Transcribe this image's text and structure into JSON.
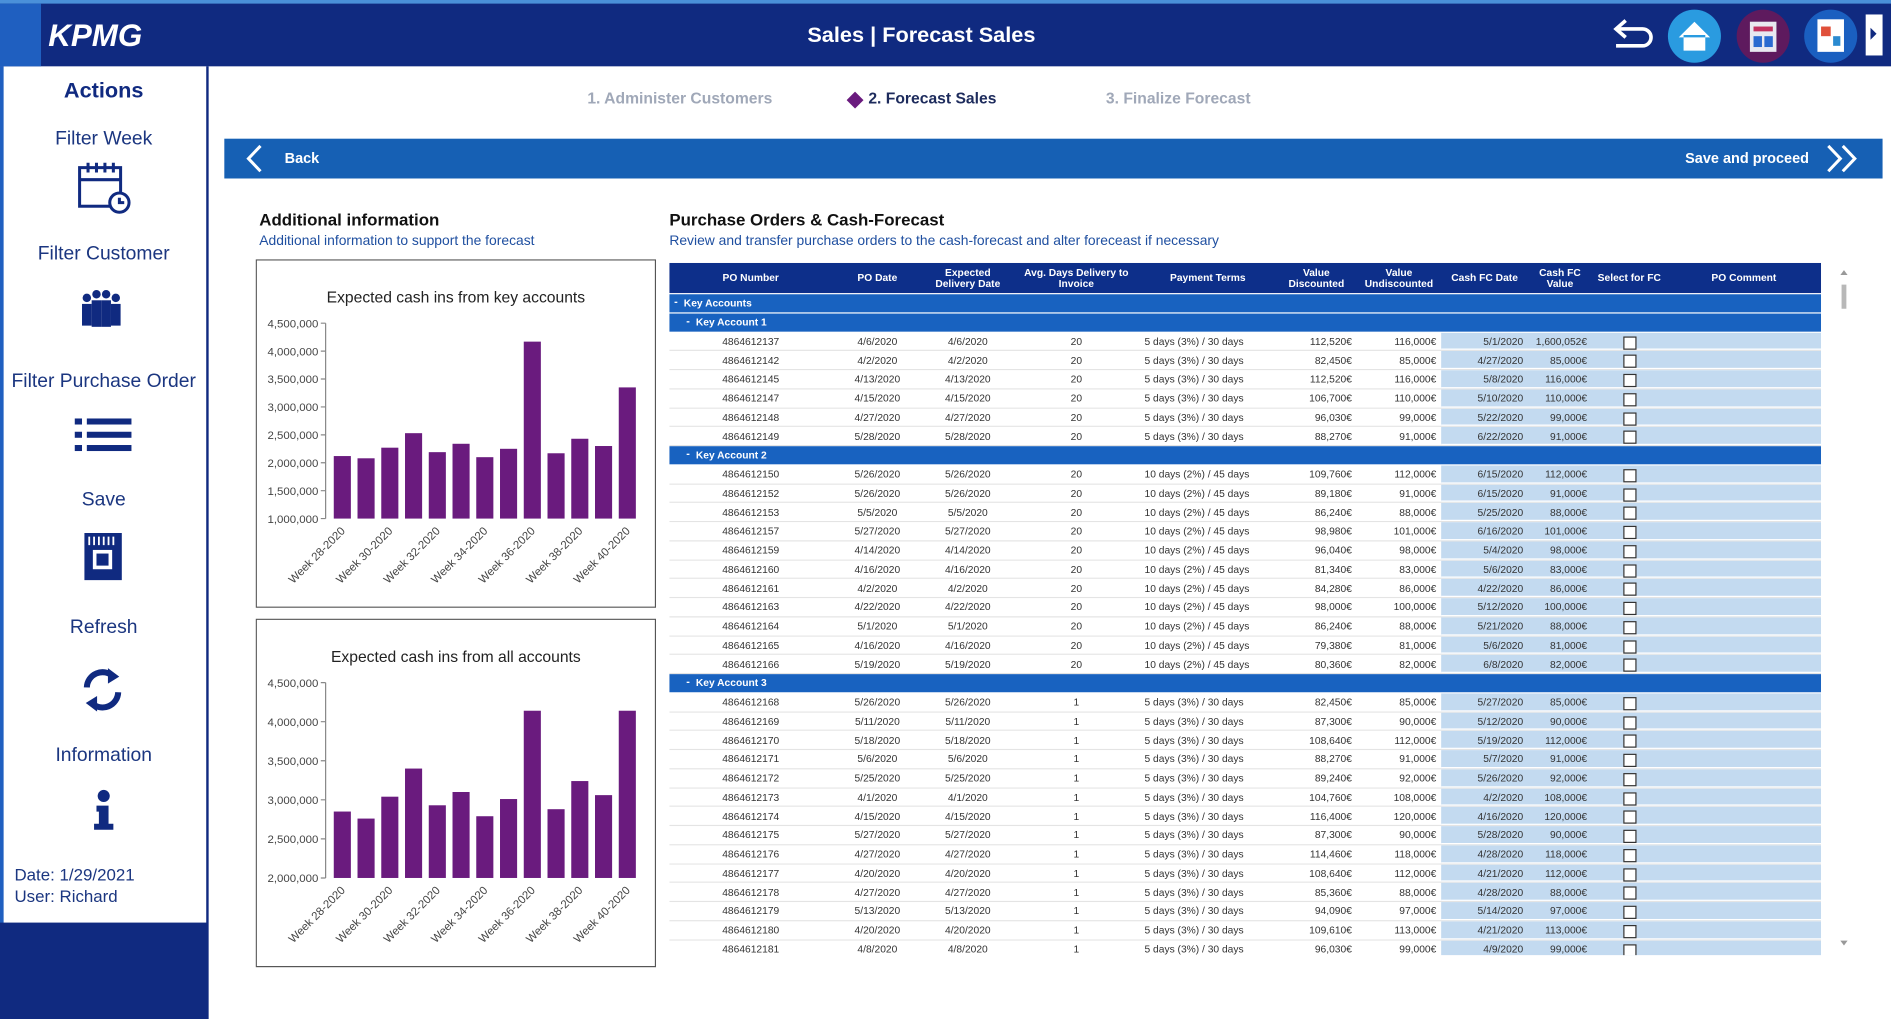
{
  "header": {
    "logo": "KPMG",
    "title": "Sales | Forecast Sales"
  },
  "sidebar": {
    "heading": "Actions",
    "actions": [
      "Filter Week",
      "Filter Customer",
      "Filter Purchase Order",
      "Save",
      "Refresh",
      "Information"
    ],
    "date": "Date: 1/29/2021",
    "user": "User: Richard"
  },
  "steps": [
    "1. Administer Customers",
    "2. Forecast Sales",
    "3. Finalize Forecast"
  ],
  "toolbar": {
    "back": "Back",
    "proceed": "Save and proceed"
  },
  "info": {
    "title": "Additional information",
    "subtitle": "Additional information to support the forecast"
  },
  "chart_data": [
    {
      "type": "bar",
      "title": "Expected cash ins from key accounts",
      "color": "#6a1b7e",
      "categories": [
        "Week 28-2020",
        null,
        "Week 30-2020",
        null,
        "Week 32-2020",
        null,
        "Week 34-2020",
        null,
        "Week 36-2020",
        null,
        "Week 38-2020",
        null,
        "Week 40-2020"
      ],
      "values": [
        2120000,
        2080000,
        2270000,
        2530000,
        2190000,
        2340000,
        2100000,
        2250000,
        4170000,
        2170000,
        2430000,
        2300000,
        3350000
      ],
      "ylim": [
        1000000,
        4500000
      ],
      "yticks": [
        {
          "value": 1000000,
          "label": "1,000,000"
        },
        {
          "value": 1500000,
          "label": "1,500,000"
        },
        {
          "value": 2000000,
          "label": "2,000,000"
        },
        {
          "value": 2500000,
          "label": "2,500,000"
        },
        {
          "value": 3000000,
          "label": "3,000,000"
        },
        {
          "value": 3500000,
          "label": "3,500,000"
        },
        {
          "value": 4000000,
          "label": "4,000,000"
        },
        {
          "value": 4500000,
          "label": "4,500,000"
        }
      ]
    },
    {
      "type": "bar",
      "title": "Expected cash ins from all accounts",
      "color": "#6a1b7e",
      "categories": [
        "Week 28-2020",
        null,
        "Week 30-2020",
        null,
        "Week 32-2020",
        null,
        "Week 34-2020",
        null,
        "Week 36-2020",
        null,
        "Week 38-2020",
        null,
        "Week 40-2020"
      ],
      "values": [
        2850000,
        2760000,
        3040000,
        3400000,
        2930000,
        3100000,
        2790000,
        3010000,
        4140000,
        2880000,
        3240000,
        3060000,
        4140000
      ],
      "ylim": [
        2000000,
        4500000
      ],
      "yticks": [
        {
          "value": 2000000,
          "label": "2,000,000"
        },
        {
          "value": 2500000,
          "label": "2,500,000"
        },
        {
          "value": 3000000,
          "label": "3,000,000"
        },
        {
          "value": 3500000,
          "label": "3,500,000"
        },
        {
          "value": 4000000,
          "label": "4,000,000"
        },
        {
          "value": 4500000,
          "label": "4,500,000"
        }
      ]
    }
  ],
  "table": {
    "title": "Purchase Orders & Cash-Forecast",
    "subtitle": "Review and transfer purchase orders to the cash-forecast and alter foreceast if necessary",
    "columns": [
      "PO Number",
      "PO Date",
      "Expected Delivery Date",
      "Avg. Days Delivery to Invoice",
      "Payment Terms",
      "Value Discounted",
      "Value Undiscounted",
      "Cash FC Date",
      "Cash FC Value",
      "Select for FC",
      "PO Comment"
    ],
    "root": "Key Accounts",
    "groups": [
      {
        "name": "Key Account 1",
        "rows": [
          [
            "4864612137",
            "4/6/2020",
            "4/6/2020",
            "20",
            "5 days (3%) / 30 days",
            "112,520€",
            "116,000€",
            "5/1/2020",
            "1,600,052€"
          ],
          [
            "4864612142",
            "4/2/2020",
            "4/2/2020",
            "20",
            "5 days (3%) / 30 days",
            "82,450€",
            "85,000€",
            "4/27/2020",
            "85,000€"
          ],
          [
            "4864612145",
            "4/13/2020",
            "4/13/2020",
            "20",
            "5 days (3%) / 30 days",
            "112,520€",
            "116,000€",
            "5/8/2020",
            "116,000€"
          ],
          [
            "4864612147",
            "4/15/2020",
            "4/15/2020",
            "20",
            "5 days (3%) / 30 days",
            "106,700€",
            "110,000€",
            "5/10/2020",
            "110,000€"
          ],
          [
            "4864612148",
            "4/27/2020",
            "4/27/2020",
            "20",
            "5 days (3%) / 30 days",
            "96,030€",
            "99,000€",
            "5/22/2020",
            "99,000€"
          ],
          [
            "4864612149",
            "5/28/2020",
            "5/28/2020",
            "20",
            "5 days (3%) / 30 days",
            "88,270€",
            "91,000€",
            "6/22/2020",
            "91,000€"
          ]
        ]
      },
      {
        "name": "Key Account 2",
        "rows": [
          [
            "4864612150",
            "5/26/2020",
            "5/26/2020",
            "20",
            "10 days (2%) / 45 days",
            "109,760€",
            "112,000€",
            "6/15/2020",
            "112,000€"
          ],
          [
            "4864612152",
            "5/26/2020",
            "5/26/2020",
            "20",
            "10 days (2%) / 45 days",
            "89,180€",
            "91,000€",
            "6/15/2020",
            "91,000€"
          ],
          [
            "4864612153",
            "5/5/2020",
            "5/5/2020",
            "20",
            "10 days (2%) / 45 days",
            "86,240€",
            "88,000€",
            "5/25/2020",
            "88,000€"
          ],
          [
            "4864612157",
            "5/27/2020",
            "5/27/2020",
            "20",
            "10 days (2%) / 45 days",
            "98,980€",
            "101,000€",
            "6/16/2020",
            "101,000€"
          ],
          [
            "4864612159",
            "4/14/2020",
            "4/14/2020",
            "20",
            "10 days (2%) / 45 days",
            "96,040€",
            "98,000€",
            "5/4/2020",
            "98,000€"
          ],
          [
            "4864612160",
            "4/16/2020",
            "4/16/2020",
            "20",
            "10 days (2%) / 45 days",
            "81,340€",
            "83,000€",
            "5/6/2020",
            "83,000€"
          ],
          [
            "4864612161",
            "4/2/2020",
            "4/2/2020",
            "20",
            "10 days (2%) / 45 days",
            "84,280€",
            "86,000€",
            "4/22/2020",
            "86,000€"
          ],
          [
            "4864612163",
            "4/22/2020",
            "4/22/2020",
            "20",
            "10 days (2%) / 45 days",
            "98,000€",
            "100,000€",
            "5/12/2020",
            "100,000€"
          ],
          [
            "4864612164",
            "5/1/2020",
            "5/1/2020",
            "20",
            "10 days (2%) / 45 days",
            "86,240€",
            "88,000€",
            "5/21/2020",
            "88,000€"
          ],
          [
            "4864612165",
            "4/16/2020",
            "4/16/2020",
            "20",
            "10 days (2%) / 45 days",
            "79,380€",
            "81,000€",
            "5/6/2020",
            "81,000€"
          ],
          [
            "4864612166",
            "5/19/2020",
            "5/19/2020",
            "20",
            "10 days (2%) / 45 days",
            "80,360€",
            "82,000€",
            "6/8/2020",
            "82,000€"
          ]
        ]
      },
      {
        "name": "Key Account 3",
        "rows": [
          [
            "4864612168",
            "5/26/2020",
            "5/26/2020",
            "1",
            "5 days (3%) / 30 days",
            "82,450€",
            "85,000€",
            "5/27/2020",
            "85,000€"
          ],
          [
            "4864612169",
            "5/11/2020",
            "5/11/2020",
            "1",
            "5 days (3%) / 30 days",
            "87,300€",
            "90,000€",
            "5/12/2020",
            "90,000€"
          ],
          [
            "4864612170",
            "5/18/2020",
            "5/18/2020",
            "1",
            "5 days (3%) / 30 days",
            "108,640€",
            "112,000€",
            "5/19/2020",
            "112,000€"
          ],
          [
            "4864612171",
            "5/6/2020",
            "5/6/2020",
            "1",
            "5 days (3%) / 30 days",
            "88,270€",
            "91,000€",
            "5/7/2020",
            "91,000€"
          ],
          [
            "4864612172",
            "5/25/2020",
            "5/25/2020",
            "1",
            "5 days (3%) / 30 days",
            "89,240€",
            "92,000€",
            "5/26/2020",
            "92,000€"
          ],
          [
            "4864612173",
            "4/1/2020",
            "4/1/2020",
            "1",
            "5 days (3%) / 30 days",
            "104,760€",
            "108,000€",
            "4/2/2020",
            "108,000€"
          ],
          [
            "4864612174",
            "4/15/2020",
            "4/15/2020",
            "1",
            "5 days (3%) / 30 days",
            "116,400€",
            "120,000€",
            "4/16/2020",
            "120,000€"
          ],
          [
            "4864612175",
            "5/27/2020",
            "5/27/2020",
            "1",
            "5 days (3%) / 30 days",
            "87,300€",
            "90,000€",
            "5/28/2020",
            "90,000€"
          ],
          [
            "4864612176",
            "4/27/2020",
            "4/27/2020",
            "1",
            "5 days (3%) / 30 days",
            "114,460€",
            "118,000€",
            "4/28/2020",
            "118,000€"
          ],
          [
            "4864612177",
            "4/20/2020",
            "4/20/2020",
            "1",
            "5 days (3%) / 30 days",
            "108,640€",
            "112,000€",
            "4/21/2020",
            "112,000€"
          ],
          [
            "4864612178",
            "4/27/2020",
            "4/27/2020",
            "1",
            "5 days (3%) / 30 days",
            "85,360€",
            "88,000€",
            "4/28/2020",
            "88,000€"
          ],
          [
            "4864612179",
            "5/13/2020",
            "5/13/2020",
            "1",
            "5 days (3%) / 30 days",
            "94,090€",
            "97,000€",
            "5/14/2020",
            "97,000€"
          ],
          [
            "4864612180",
            "4/20/2020",
            "4/20/2020",
            "1",
            "5 days (3%) / 30 days",
            "109,610€",
            "113,000€",
            "4/21/2020",
            "113,000€"
          ],
          [
            "4864612181",
            "4/8/2020",
            "4/8/2020",
            "1",
            "5 days (3%) / 30 days",
            "96,030€",
            "99,000€",
            "4/9/2020",
            "99,000€"
          ]
        ]
      }
    ]
  }
}
